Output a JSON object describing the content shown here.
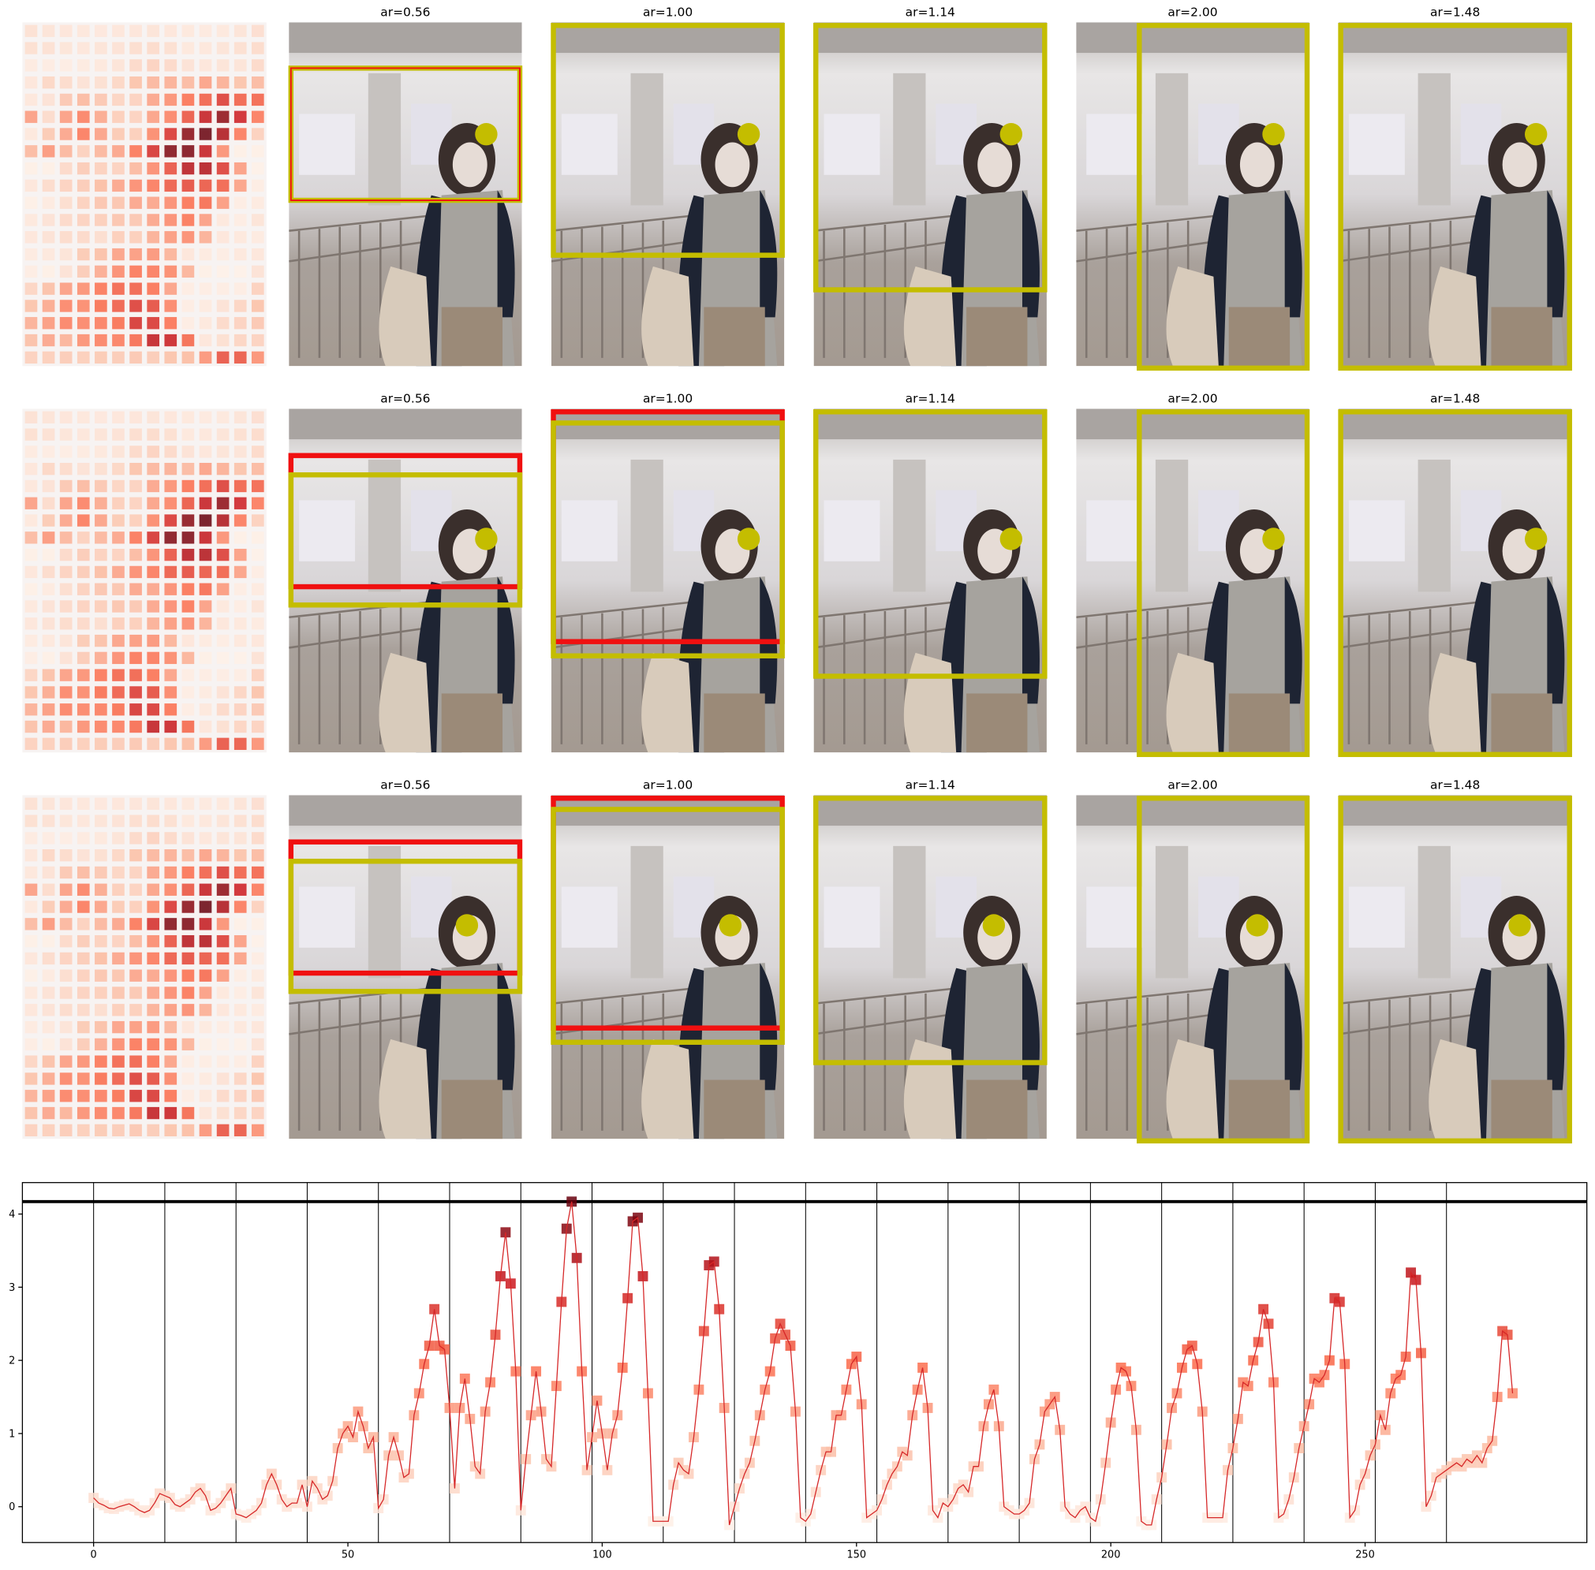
{
  "panels": {
    "rows": [
      {
        "titles": [
          "ar=0.56",
          "ar=1.00",
          "ar=1.14",
          "ar=2.00",
          "ar=1.48"
        ]
      },
      {
        "titles": [
          "ar=0.56",
          "ar=1.00",
          "ar=1.14",
          "ar=2.00",
          "ar=1.48"
        ]
      },
      {
        "titles": [
          "ar=0.56",
          "ar=1.00",
          "ar=1.14",
          "ar=2.00",
          "ar=1.48"
        ]
      }
    ]
  },
  "chart_data": {
    "type": "line",
    "color": "#d62728",
    "colormap": "Reds",
    "values": [
      0.12,
      0.05,
      0.02,
      -0.02,
      -0.03,
      0.0,
      0.02,
      0.04,
      0.0,
      -0.05,
      -0.08,
      -0.05,
      0.05,
      0.18,
      0.15,
      0.12,
      0.03,
      0.0,
      0.05,
      0.1,
      0.2,
      0.25,
      0.15,
      -0.05,
      -0.02,
      0.05,
      0.15,
      0.25,
      -0.1,
      -0.12,
      -0.15,
      -0.1,
      -0.05,
      0.05,
      0.3,
      0.45,
      0.3,
      0.1,
      0.0,
      0.05,
      0.05,
      0.3,
      0.0,
      0.35,
      0.25,
      0.1,
      0.15,
      0.35,
      0.8,
      1.0,
      1.1,
      0.95,
      1.3,
      1.1,
      0.8,
      0.95,
      -0.02,
      0.1,
      0.7,
      0.95,
      0.7,
      0.4,
      0.45,
      1.25,
      1.55,
      1.95,
      2.2,
      2.7,
      2.2,
      2.15,
      1.35,
      0.25,
      1.35,
      1.75,
      1.2,
      0.55,
      0.45,
      1.3,
      1.7,
      2.35,
      3.15,
      3.75,
      3.05,
      1.85,
      -0.05,
      0.65,
      1.25,
      1.85,
      1.3,
      0.65,
      0.55,
      1.65,
      2.8,
      3.8,
      4.17,
      3.4,
      1.85,
      0.5,
      0.95,
      1.45,
      1.0,
      0.5,
      1.0,
      1.25,
      1.9,
      2.85,
      3.9,
      3.95,
      3.15,
      1.55,
      -0.2,
      -0.2,
      -0.2,
      -0.2,
      0.3,
      0.6,
      0.5,
      0.45,
      0.95,
      1.6,
      2.4,
      3.3,
      3.35,
      2.7,
      1.35,
      -0.25,
      0.0,
      0.25,
      0.45,
      0.6,
      0.9,
      1.25,
      1.6,
      1.85,
      2.3,
      2.5,
      2.35,
      2.2,
      1.3,
      -0.15,
      -0.2,
      -0.1,
      0.2,
      0.5,
      0.75,
      0.75,
      1.25,
      1.25,
      1.6,
      1.95,
      2.05,
      1.4,
      -0.15,
      -0.1,
      -0.05,
      0.1,
      0.3,
      0.45,
      0.55,
      0.75,
      0.7,
      1.25,
      1.6,
      1.9,
      1.35,
      -0.05,
      -0.15,
      0.05,
      0.0,
      0.1,
      0.25,
      0.3,
      0.2,
      0.55,
      0.55,
      1.1,
      1.4,
      1.6,
      1.1,
      0.0,
      -0.05,
      -0.1,
      -0.1,
      -0.05,
      0.05,
      0.65,
      0.85,
      1.3,
      1.4,
      1.5,
      1.05,
      0.0,
      -0.1,
      -0.15,
      -0.05,
      0.0,
      -0.15,
      -0.2,
      0.1,
      0.6,
      1.15,
      1.6,
      1.9,
      1.85,
      1.65,
      1.05,
      -0.2,
      -0.25,
      -0.25,
      0.1,
      0.4,
      0.85,
      1.35,
      1.55,
      1.9,
      2.15,
      2.2,
      1.95,
      1.3,
      -0.15,
      -0.15,
      -0.15,
      -0.15,
      0.5,
      0.8,
      1.2,
      1.7,
      1.65,
      2.0,
      2.25,
      2.7,
      2.5,
      1.7,
      -0.15,
      -0.1,
      0.1,
      0.4,
      0.8,
      1.1,
      1.4,
      1.75,
      1.7,
      1.8,
      2.0,
      2.85,
      2.8,
      1.95,
      -0.15,
      -0.05,
      0.3,
      0.45,
      0.7,
      0.85,
      1.25,
      1.05,
      1.55,
      1.75,
      1.8,
      2.05,
      3.2,
      3.1,
      2.1,
      0.0,
      0.15,
      0.4,
      0.45,
      0.5,
      0.55,
      0.6,
      0.55,
      0.65,
      0.6,
      0.7,
      0.6,
      0.8,
      0.9,
      1.5,
      2.4,
      2.35,
      1.55
    ],
    "vlines": [
      0,
      14,
      28,
      42,
      56,
      70,
      84,
      98,
      112,
      126,
      140,
      154,
      168,
      182,
      196,
      210,
      224,
      238,
      252,
      266
    ],
    "hline": 4.17,
    "xlim": [
      -14,
      293.6
    ],
    "ylim": [
      -0.49,
      4.43
    ],
    "xticks": [
      0,
      50,
      100,
      150,
      200,
      250
    ],
    "yticks": [
      0,
      1,
      2,
      3,
      4
    ]
  }
}
